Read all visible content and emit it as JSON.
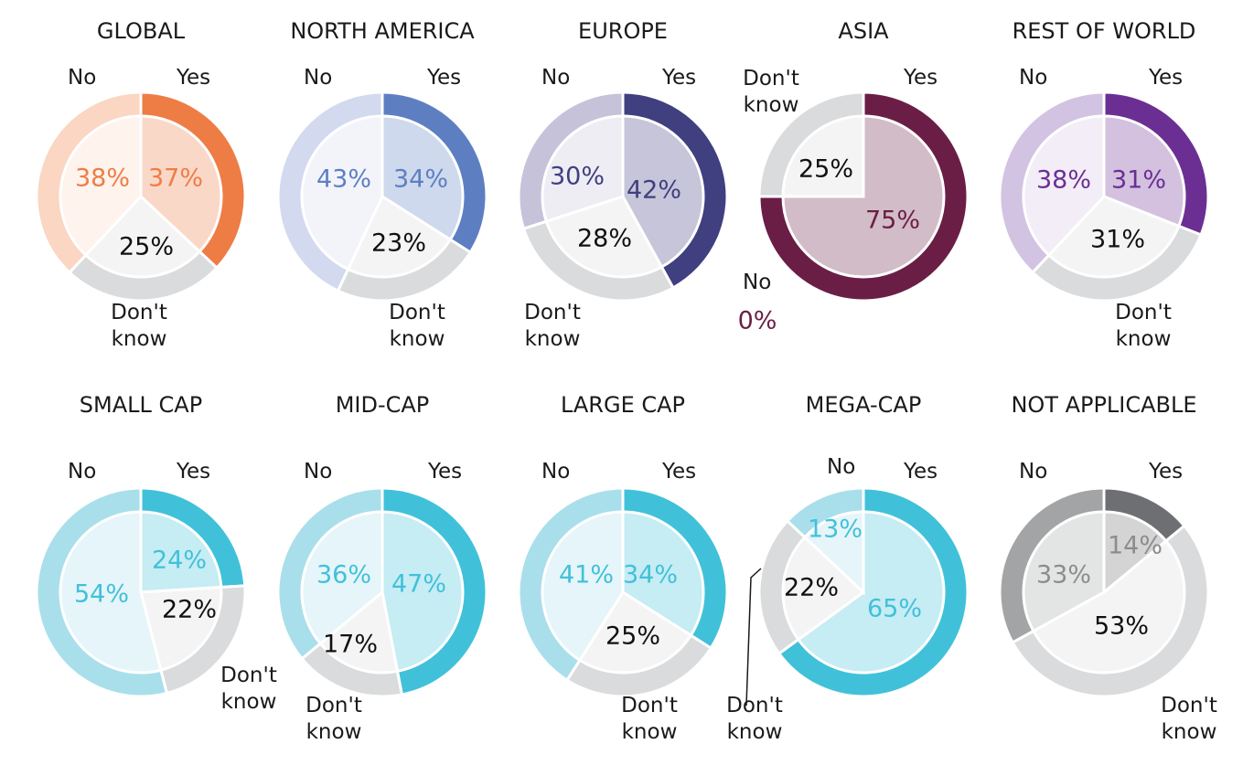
{
  "chart_data": [
    {
      "type": "pie",
      "title": "GLOBAL",
      "palette": {
        "yes": "#ee7d45",
        "no": "#fad6c3",
        "dk": "#dadbdd",
        "text": "#ee7d45"
      },
      "slices": [
        {
          "label": "Yes",
          "value": 37
        },
        {
          "label": "Don't know",
          "value": 25
        },
        {
          "label": "No",
          "value": 38
        }
      ]
    },
    {
      "type": "pie",
      "title": "NORTH AMERICA",
      "palette": {
        "yes": "#5d7fc2",
        "no": "#d3d9ee",
        "dk": "#dadbdd",
        "text": "#5d7fc2"
      },
      "slices": [
        {
          "label": "Yes",
          "value": 34
        },
        {
          "label": "Don't know",
          "value": 23
        },
        {
          "label": "No",
          "value": 43
        }
      ]
    },
    {
      "type": "pie",
      "title": "EUROPE",
      "palette": {
        "yes": "#403f7f",
        "no": "#c6c2da",
        "dk": "#dadbdd",
        "text": "#403f7f"
      },
      "slices": [
        {
          "label": "Yes",
          "value": 42
        },
        {
          "label": "Don't know",
          "value": 28
        },
        {
          "label": "No",
          "value": 30
        }
      ]
    },
    {
      "type": "pie",
      "title": "ASIA",
      "palette": {
        "yes": "#6a1e45",
        "no": "#e2c8d4",
        "dk": "#dadbdd",
        "text": "#6a1e45"
      },
      "slices": [
        {
          "label": "Yes",
          "value": 75
        },
        {
          "label": "Don't know",
          "value": 25
        },
        {
          "label": "No",
          "value": 0
        }
      ]
    },
    {
      "type": "pie",
      "title": "REST OF WORLD",
      "palette": {
        "yes": "#6b2f93",
        "no": "#d3c3e2",
        "dk": "#dadbdd",
        "text": "#6b2f93"
      },
      "slices": [
        {
          "label": "Yes",
          "value": 31
        },
        {
          "label": "Don't know",
          "value": 31
        },
        {
          "label": "No",
          "value": 38
        }
      ]
    },
    {
      "type": "pie",
      "title": "SMALL CAP",
      "palette": {
        "yes": "#41c1d9",
        "no": "#a9dfeb",
        "dk": "#dadbdd",
        "text": "#41c1d9"
      },
      "slices": [
        {
          "label": "Yes",
          "value": 24
        },
        {
          "label": "Don't know",
          "value": 22
        },
        {
          "label": "No",
          "value": 54
        }
      ]
    },
    {
      "type": "pie",
      "title": "MID-CAP",
      "palette": {
        "yes": "#41c1d9",
        "no": "#a9dfeb",
        "dk": "#dadbdd",
        "text": "#41c1d9"
      },
      "slices": [
        {
          "label": "Yes",
          "value": 47
        },
        {
          "label": "Don't know",
          "value": 17
        },
        {
          "label": "No",
          "value": 36
        }
      ]
    },
    {
      "type": "pie",
      "title": "LARGE CAP",
      "palette": {
        "yes": "#41c1d9",
        "no": "#a9dfeb",
        "dk": "#dadbdd",
        "text": "#41c1d9"
      },
      "slices": [
        {
          "label": "Yes",
          "value": 34
        },
        {
          "label": "Don't know",
          "value": 25
        },
        {
          "label": "No",
          "value": 41
        }
      ]
    },
    {
      "type": "pie",
      "title": "MEGA-CAP",
      "palette": {
        "yes": "#41c1d9",
        "no": "#a9dfeb",
        "dk": "#dadbdd",
        "text": "#41c1d9"
      },
      "slices": [
        {
          "label": "Yes",
          "value": 65
        },
        {
          "label": "Don't know",
          "value": 22
        },
        {
          "label": "No",
          "value": 13
        }
      ]
    },
    {
      "type": "pie",
      "title": "NOT APPLICABLE",
      "palette": {
        "yes": "#6e6f72",
        "no": "#a3a4a6",
        "dk": "#dadbdd",
        "text": "#8b8c8e"
      },
      "slices": [
        {
          "label": "Yes",
          "value": 14
        },
        {
          "label": "Don't know",
          "value": 53
        },
        {
          "label": "No",
          "value": 33
        }
      ]
    }
  ]
}
